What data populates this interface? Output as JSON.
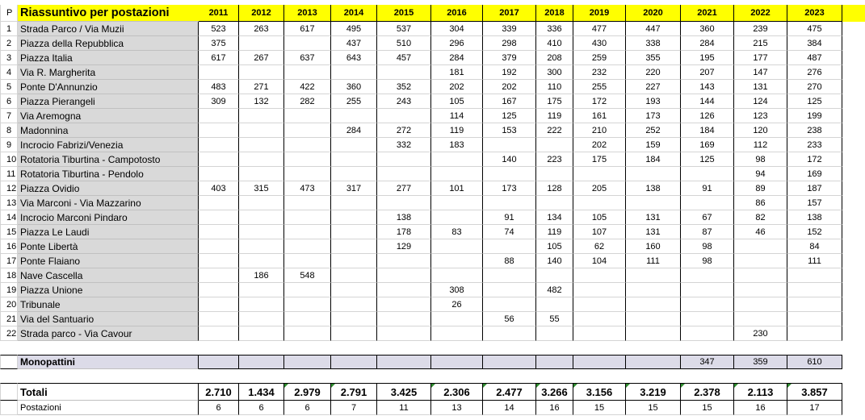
{
  "sheet": {
    "title": "Riassuntivo per postazioni",
    "index_header": "P",
    "years": [
      "2011",
      "2012",
      "2013",
      "2014",
      "2015",
      "2016",
      "2017",
      "2018",
      "2019",
      "2020",
      "2021",
      "2022",
      "2023"
    ]
  },
  "rows": [
    {
      "n": "1",
      "name": "Strada Parco / Via Muzii",
      "v": [
        "523",
        "263",
        "617",
        "495",
        "537",
        "304",
        "339",
        "336",
        "477",
        "447",
        "360",
        "239",
        "475"
      ]
    },
    {
      "n": "2",
      "name": "Piazza della Repubblica",
      "v": [
        "375",
        "",
        "",
        "437",
        "510",
        "296",
        "298",
        "410",
        "430",
        "338",
        "284",
        "215",
        "384"
      ]
    },
    {
      "n": "3",
      "name": "Piazza Italia",
      "v": [
        "617",
        "267",
        "637",
        "643",
        "457",
        "284",
        "379",
        "208",
        "259",
        "355",
        "195",
        "177",
        "487"
      ]
    },
    {
      "n": "4",
      "name": "Via R. Margherita",
      "v": [
        "",
        "",
        "",
        "",
        "",
        "181",
        "192",
        "300",
        "232",
        "220",
        "207",
        "147",
        "276"
      ]
    },
    {
      "n": "5",
      "name": "Ponte D'Annunzio",
      "v": [
        "483",
        "271",
        "422",
        "360",
        "352",
        "202",
        "202",
        "110",
        "255",
        "227",
        "143",
        "131",
        "270"
      ]
    },
    {
      "n": "6",
      "name": "Piazza Pierangeli",
      "v": [
        "309",
        "132",
        "282",
        "255",
        "243",
        "105",
        "167",
        "175",
        "172",
        "193",
        "144",
        "124",
        "125"
      ]
    },
    {
      "n": "7",
      "name": "Via Aremogna",
      "v": [
        "",
        "",
        "",
        "",
        "",
        "114",
        "125",
        "119",
        "161",
        "173",
        "126",
        "123",
        "199"
      ]
    },
    {
      "n": "8",
      "name": "Madonnina",
      "v": [
        "",
        "",
        "",
        "284",
        "272",
        "119",
        "153",
        "222",
        "210",
        "252",
        "184",
        "120",
        "238"
      ]
    },
    {
      "n": "9",
      "name": "Incrocio Fabrizi/Venezia",
      "v": [
        "",
        "",
        "",
        "",
        "332",
        "183",
        "",
        "",
        "202",
        "159",
        "169",
        "112",
        "233"
      ]
    },
    {
      "n": "10",
      "name": "Rotatoria Tiburtina - Campotosto",
      "v": [
        "",
        "",
        "",
        "",
        "",
        "",
        "140",
        "223",
        "175",
        "184",
        "125",
        "98",
        "172"
      ]
    },
    {
      "n": "11",
      "name": "Rotatoria Tiburtina - Pendolo",
      "v": [
        "",
        "",
        "",
        "",
        "",
        "",
        "",
        "",
        "",
        "",
        "",
        "94",
        "169"
      ]
    },
    {
      "n": "12",
      "name": "Piazza Ovidio",
      "v": [
        "403",
        "315",
        "473",
        "317",
        "277",
        "101",
        "173",
        "128",
        "205",
        "138",
        "91",
        "89",
        "187"
      ]
    },
    {
      "n": "13",
      "name": "Via Marconi - Via Mazzarino",
      "v": [
        "",
        "",
        "",
        "",
        "",
        "",
        "",
        "",
        "",
        "",
        "",
        "86",
        "157"
      ]
    },
    {
      "n": "14",
      "name": "Incrocio Marconi Pindaro",
      "v": [
        "",
        "",
        "",
        "",
        "138",
        "",
        "91",
        "134",
        "105",
        "131",
        "67",
        "82",
        "138"
      ]
    },
    {
      "n": "15",
      "name": "Piazza Le Laudi",
      "v": [
        "",
        "",
        "",
        "",
        "178",
        "83",
        "74",
        "119",
        "107",
        "131",
        "87",
        "46",
        "152"
      ]
    },
    {
      "n": "16",
      "name": "Ponte Libertà",
      "v": [
        "",
        "",
        "",
        "",
        "129",
        "",
        "",
        "105",
        "62",
        "160",
        "98",
        "",
        "84"
      ]
    },
    {
      "n": "17",
      "name": "Ponte Flaiano",
      "v": [
        "",
        "",
        "",
        "",
        "",
        "",
        "88",
        "140",
        "104",
        "111",
        "98",
        "",
        "111"
      ]
    },
    {
      "n": "18",
      "name": "Nave Cascella",
      "v": [
        "",
        "186",
        "548",
        "",
        "",
        "",
        "",
        "",
        "",
        "",
        "",
        "",
        ""
      ]
    },
    {
      "n": "19",
      "name": "Piazza Unione",
      "v": [
        "",
        "",
        "",
        "",
        "",
        "308",
        "",
        "482",
        "",
        "",
        "",
        "",
        ""
      ]
    },
    {
      "n": "20",
      "name": "Tribunale",
      "v": [
        "",
        "",
        "",
        "",
        "",
        "26",
        "",
        "",
        "",
        "",
        "",
        "",
        ""
      ]
    },
    {
      "n": "21",
      "name": "Via del Santuario",
      "v": [
        "",
        "",
        "",
        "",
        "",
        "",
        "56",
        "55",
        "",
        "",
        "",
        "",
        ""
      ]
    },
    {
      "n": "22",
      "name": "Strada parco - Via Cavour",
      "v": [
        "",
        "",
        "",
        "",
        "",
        "",
        "",
        "",
        "",
        "",
        "",
        "230",
        ""
      ]
    }
  ],
  "monopattini": {
    "name": "Monopattini",
    "v": [
      "",
      "",
      "",
      "",
      "",
      "",
      "",
      "",
      "",
      "",
      "347",
      "359",
      "610"
    ]
  },
  "totali": {
    "name": "Totali",
    "v": [
      "2.710",
      "1.434",
      "2.979",
      "2.791",
      "3.425",
      "2.306",
      "2.477",
      "3.266",
      "3.156",
      "3.219",
      "2.378",
      "2.113",
      "3.857"
    ]
  },
  "postazioni": {
    "name": "Postazioni",
    "v": [
      "6",
      "6",
      "6",
      "7",
      "11",
      "13",
      "14",
      "16",
      "15",
      "15",
      "15",
      "16",
      "17"
    ]
  }
}
